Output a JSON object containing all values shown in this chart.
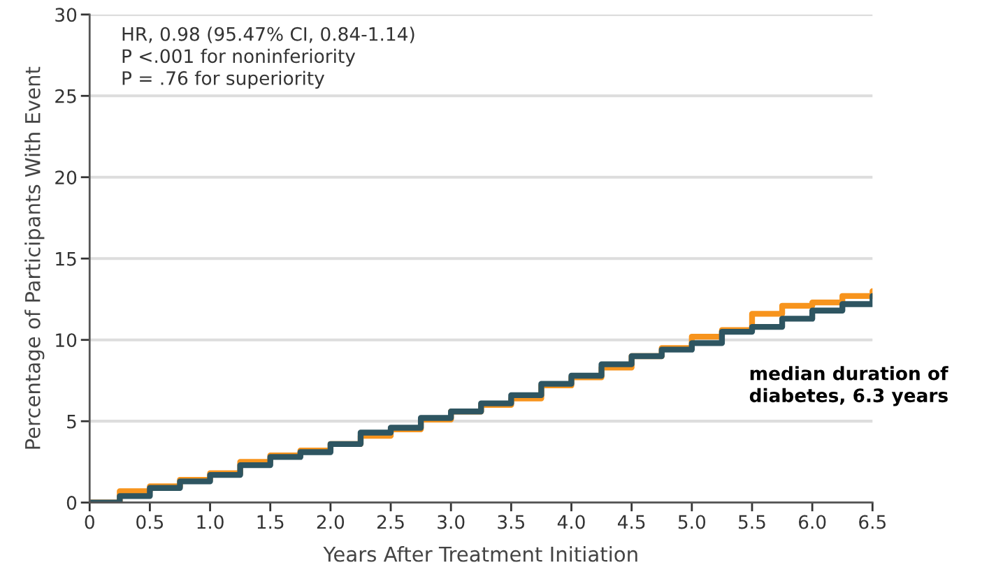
{
  "chart_data": {
    "type": "step",
    "xlabel": "Years After Treatment Initiation",
    "ylabel": "Percentage of Participants With Event",
    "x": [
      0,
      0.25,
      0.5,
      0.75,
      1.0,
      1.25,
      1.5,
      1.75,
      2.0,
      2.25,
      2.5,
      2.75,
      3.0,
      3.25,
      3.5,
      3.75,
      4.0,
      4.25,
      4.5,
      4.75,
      5.0,
      5.25,
      5.5,
      5.75,
      6.0,
      6.25,
      6.5
    ],
    "series": [
      {
        "color": "#f7941d",
        "values": [
          0,
          0.7,
          1.0,
          1.4,
          1.8,
          2.5,
          2.9,
          3.2,
          3.6,
          4.1,
          4.5,
          5.1,
          5.6,
          6.0,
          6.4,
          7.2,
          7.7,
          8.3,
          9.0,
          9.5,
          10.2,
          10.6,
          11.6,
          12.1,
          12.3,
          12.7,
          13.0
        ]
      },
      {
        "color": "#2e5561",
        "values": [
          0,
          0.4,
          0.9,
          1.3,
          1.7,
          2.3,
          2.8,
          3.1,
          3.6,
          4.3,
          4.6,
          5.2,
          5.6,
          6.1,
          6.6,
          7.3,
          7.8,
          8.5,
          9.0,
          9.4,
          9.8,
          10.5,
          10.8,
          11.3,
          11.8,
          12.2,
          12.7
        ]
      }
    ],
    "xlim": [
      0,
      6.5
    ],
    "ylim": [
      0,
      30
    ],
    "xticks": [
      0,
      0.5,
      {
        "value": 1,
        "label": "1.0"
      },
      1.5,
      {
        "value": 2,
        "label": "2.0"
      },
      2.5,
      {
        "value": 3,
        "label": "3.0"
      },
      3.5,
      {
        "value": 4,
        "label": "4.0"
      },
      4.5,
      {
        "value": 5,
        "label": "5.0"
      },
      5.5,
      {
        "value": 6,
        "label": "6.0"
      },
      6.5
    ],
    "yticks": [
      0,
      5,
      10,
      15,
      20,
      25,
      30
    ],
    "grid": "y",
    "line_style": "solid",
    "annotations": [
      "HR, 0.98 (95.47% CI, 0.84-1.14)\nP <.001 for noninferiority\nP = .76 for superiority",
      "median duration of\ndiabetes, 6.3 years"
    ]
  }
}
